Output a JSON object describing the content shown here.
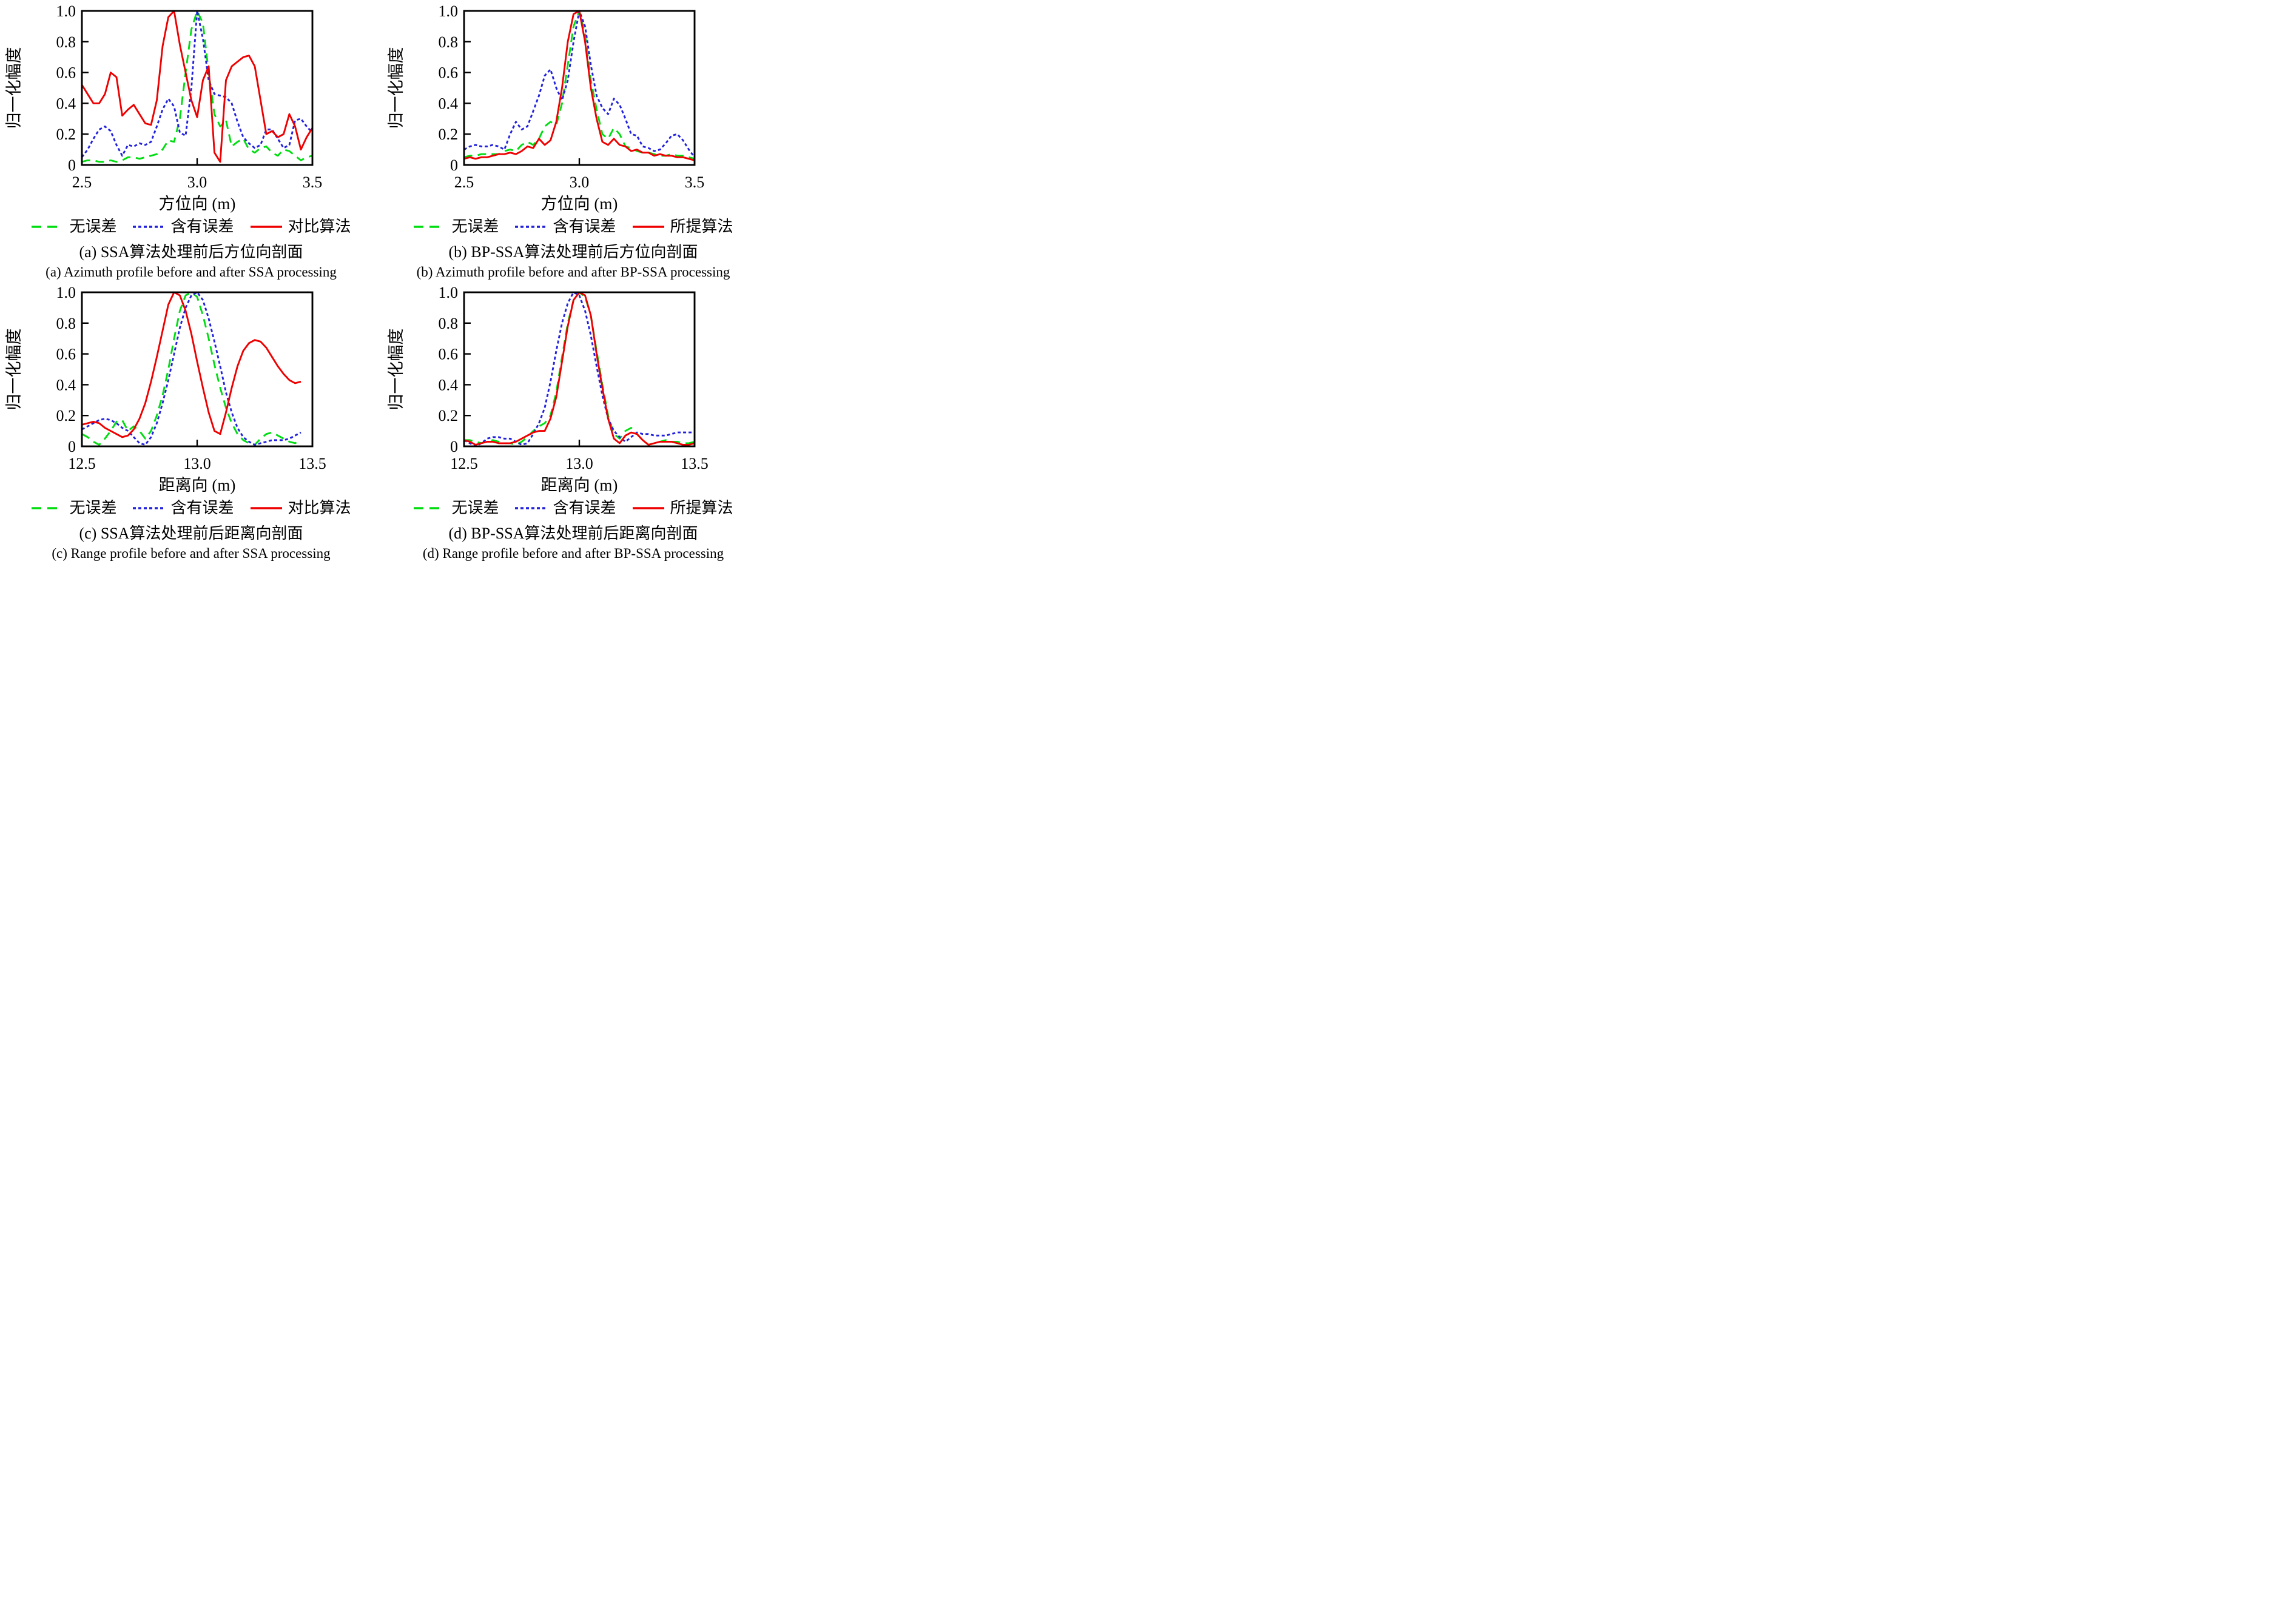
{
  "chart_data": [
    {
      "id": "a",
      "type": "line",
      "caption_zh": "(a) SSA算法处理前后方位向剖面",
      "caption_en": "(a) Azimuth profile before and after SSA processing",
      "xlabel": "方位向 (m)",
      "ylabel": "归一化幅度",
      "xlim": [
        2.5,
        3.5
      ],
      "ylim": [
        0,
        1.0
      ],
      "grid": false,
      "legend_position": "below",
      "x_ticks": [
        {
          "v": 2.5,
          "label": "2.5"
        },
        {
          "v": 3.0,
          "label": "3.0"
        },
        {
          "v": 3.5,
          "label": "3.5"
        }
      ],
      "y_ticks": [
        {
          "v": 0,
          "label": "0"
        },
        {
          "v": 0.2,
          "label": "0.2"
        },
        {
          "v": 0.4,
          "label": "0.4"
        },
        {
          "v": 0.6,
          "label": "0.6"
        },
        {
          "v": 0.8,
          "label": "0.8"
        },
        {
          "v": 1.0,
          "label": "1.0"
        }
      ],
      "series": [
        {
          "name": "无误差",
          "color": "#00dd11",
          "dash": "14,9",
          "legend_dash": "16,10",
          "x_start": 2.5,
          "x_step": 0.025,
          "values": [
            0.02,
            0.03,
            0.03,
            0.02,
            0.02,
            0.03,
            0.02,
            0.03,
            0.05,
            0.05,
            0.04,
            0.05,
            0.06,
            0.07,
            0.1,
            0.16,
            0.15,
            0.3,
            0.6,
            0.88,
            1.0,
            0.92,
            0.6,
            0.33,
            0.25,
            0.29,
            0.12,
            0.15,
            0.17,
            0.1,
            0.08,
            0.11,
            0.12,
            0.08,
            0.06,
            0.1,
            0.09,
            0.06,
            0.03,
            0.05,
            0.06
          ]
        },
        {
          "name": "含有误差",
          "color": "#2222dd",
          "dash": "5,4",
          "legend_dash": "5,4",
          "x_start": 2.5,
          "x_step": 0.025,
          "values": [
            0.05,
            0.1,
            0.17,
            0.23,
            0.25,
            0.22,
            0.13,
            0.06,
            0.13,
            0.12,
            0.14,
            0.13,
            0.15,
            0.25,
            0.36,
            0.43,
            0.38,
            0.21,
            0.19,
            0.5,
            1.0,
            0.82,
            0.55,
            0.46,
            0.45,
            0.44,
            0.4,
            0.28,
            0.18,
            0.14,
            0.11,
            0.13,
            0.23,
            0.23,
            0.17,
            0.11,
            0.13,
            0.29,
            0.3,
            0.25,
            0.21
          ]
        },
        {
          "name": "对比算法",
          "color": "#ee0000",
          "dash": "",
          "legend_dash": "",
          "x_start": 2.5,
          "x_step": 0.025,
          "values": [
            0.52,
            0.46,
            0.4,
            0.4,
            0.46,
            0.6,
            0.57,
            0.32,
            0.36,
            0.39,
            0.33,
            0.27,
            0.26,
            0.42,
            0.77,
            0.96,
            1.0,
            0.78,
            0.6,
            0.42,
            0.31,
            0.55,
            0.64,
            0.08,
            0.02,
            0.55,
            0.64,
            0.67,
            0.7,
            0.71,
            0.64,
            0.42,
            0.2,
            0.22,
            0.18,
            0.2,
            0.33,
            0.25,
            0.1,
            0.18,
            0.24
          ]
        }
      ]
    },
    {
      "id": "b",
      "type": "line",
      "caption_zh": "(b) BP-SSA算法处理前后方位向剖面",
      "caption_en": "(b) Azimuth profile before and after BP-SSA processing",
      "xlabel": "方位向 (m)",
      "ylabel": "归一化幅度",
      "xlim": [
        2.5,
        3.5
      ],
      "ylim": [
        0,
        1.0
      ],
      "grid": false,
      "legend_position": "below",
      "x_ticks": [
        {
          "v": 2.5,
          "label": "2.5"
        },
        {
          "v": 3.0,
          "label": "3.0"
        },
        {
          "v": 3.5,
          "label": "3.5"
        }
      ],
      "y_ticks": [
        {
          "v": 0,
          "label": "0"
        },
        {
          "v": 0.2,
          "label": "0.2"
        },
        {
          "v": 0.4,
          "label": "0.4"
        },
        {
          "v": 0.6,
          "label": "0.6"
        },
        {
          "v": 0.8,
          "label": "0.8"
        },
        {
          "v": 1.0,
          "label": "1.0"
        }
      ],
      "series": [
        {
          "name": "无误差",
          "color": "#00dd11",
          "dash": "14,9",
          "legend_dash": "16,10",
          "x_start": 2.5,
          "x_step": 0.025,
          "values": [
            0.05,
            0.06,
            0.06,
            0.07,
            0.07,
            0.07,
            0.07,
            0.09,
            0.1,
            0.09,
            0.13,
            0.15,
            0.13,
            0.17,
            0.25,
            0.28,
            0.26,
            0.4,
            0.65,
            0.9,
            1.0,
            0.85,
            0.55,
            0.36,
            0.2,
            0.17,
            0.24,
            0.2,
            0.12,
            0.11,
            0.09,
            0.08,
            0.08,
            0.07,
            0.06,
            0.06,
            0.07,
            0.06,
            0.06,
            0.05,
            0.04
          ]
        },
        {
          "name": "含有误差",
          "color": "#2222dd",
          "dash": "5,4",
          "legend_dash": "5,4",
          "x_start": 2.5,
          "x_step": 0.025,
          "values": [
            0.1,
            0.12,
            0.13,
            0.12,
            0.12,
            0.13,
            0.12,
            0.1,
            0.2,
            0.28,
            0.23,
            0.25,
            0.35,
            0.45,
            0.58,
            0.62,
            0.5,
            0.42,
            0.55,
            0.8,
            1.0,
            0.9,
            0.65,
            0.45,
            0.37,
            0.33,
            0.43,
            0.39,
            0.3,
            0.2,
            0.19,
            0.12,
            0.11,
            0.09,
            0.1,
            0.14,
            0.19,
            0.2,
            0.16,
            0.1,
            0.05
          ]
        },
        {
          "name": "所提算法",
          "color": "#ee0000",
          "dash": "",
          "legend_dash": "",
          "x_start": 2.5,
          "x_step": 0.025,
          "values": [
            0.04,
            0.05,
            0.04,
            0.05,
            0.05,
            0.06,
            0.07,
            0.07,
            0.08,
            0.07,
            0.09,
            0.12,
            0.11,
            0.17,
            0.13,
            0.16,
            0.28,
            0.5,
            0.8,
            0.98,
            1.0,
            0.8,
            0.5,
            0.3,
            0.15,
            0.13,
            0.17,
            0.13,
            0.12,
            0.09,
            0.1,
            0.08,
            0.08,
            0.06,
            0.07,
            0.06,
            0.06,
            0.05,
            0.05,
            0.04,
            0.03
          ]
        }
      ]
    },
    {
      "id": "c",
      "type": "line",
      "caption_zh": "(c) SSA算法处理前后距离向剖面",
      "caption_en": "(c) Range profile before and after SSA processing",
      "xlabel": "距离向 (m)",
      "ylabel": "归一化幅度",
      "xlim": [
        12.5,
        13.5
      ],
      "ylim": [
        0,
        1.0
      ],
      "grid": false,
      "legend_position": "below",
      "x_ticks": [
        {
          "v": 12.5,
          "label": "12.5"
        },
        {
          "v": 13.0,
          "label": "13.0"
        },
        {
          "v": 13.5,
          "label": "13.5"
        }
      ],
      "y_ticks": [
        {
          "v": 0,
          "label": "0"
        },
        {
          "v": 0.2,
          "label": "0.2"
        },
        {
          "v": 0.4,
          "label": "0.4"
        },
        {
          "v": 0.6,
          "label": "0.6"
        },
        {
          "v": 0.8,
          "label": "0.8"
        },
        {
          "v": 1.0,
          "label": "1.0"
        }
      ],
      "series": [
        {
          "name": "无误差",
          "color": "#00dd11",
          "dash": "14,9",
          "legend_dash": "16,10",
          "x_start": 12.5,
          "x_step": 0.025,
          "values": [
            0.08,
            0.06,
            0.03,
            0.01,
            0.05,
            0.1,
            0.16,
            0.17,
            0.1,
            0.13,
            0.1,
            0.05,
            0.1,
            0.2,
            0.33,
            0.5,
            0.7,
            0.88,
            0.98,
            1.0,
            0.97,
            0.85,
            0.7,
            0.53,
            0.38,
            0.25,
            0.15,
            0.08,
            0.04,
            0.02,
            0.01,
            0.05,
            0.08,
            0.09,
            0.07,
            0.05,
            0.03,
            0.02,
            0.04
          ]
        },
        {
          "name": "含有误差",
          "color": "#2222dd",
          "dash": "5,4",
          "legend_dash": "5,4",
          "x_start": 12.5,
          "x_step": 0.025,
          "values": [
            0.11,
            0.13,
            0.15,
            0.17,
            0.18,
            0.17,
            0.15,
            0.12,
            0.1,
            0.06,
            0.02,
            0.01,
            0.06,
            0.15,
            0.28,
            0.43,
            0.6,
            0.77,
            0.9,
            0.98,
            1.0,
            0.95,
            0.83,
            0.68,
            0.52,
            0.35,
            0.22,
            0.12,
            0.06,
            0.03,
            0.01,
            0.02,
            0.03,
            0.04,
            0.04,
            0.04,
            0.05,
            0.07,
            0.09
          ]
        },
        {
          "name": "对比算法",
          "color": "#ee0000",
          "dash": "",
          "legend_dash": "",
          "x_start": 12.5,
          "x_step": 0.025,
          "values": [
            0.14,
            0.15,
            0.16,
            0.15,
            0.12,
            0.1,
            0.08,
            0.06,
            0.07,
            0.11,
            0.18,
            0.28,
            0.42,
            0.58,
            0.75,
            0.92,
            1.0,
            0.98,
            0.88,
            0.73,
            0.55,
            0.38,
            0.22,
            0.1,
            0.08,
            0.22,
            0.38,
            0.52,
            0.62,
            0.67,
            0.69,
            0.68,
            0.64,
            0.58,
            0.52,
            0.47,
            0.43,
            0.41,
            0.42
          ]
        }
      ]
    },
    {
      "id": "d",
      "type": "line",
      "caption_zh": "(d) BP-SSA算法处理前后距离向剖面",
      "caption_en": "(d) Range profile before and after BP-SSA processing",
      "xlabel": "距离向 (m)",
      "ylabel": "归一化幅度",
      "xlim": [
        12.5,
        13.5
      ],
      "ylim": [
        0,
        1.0
      ],
      "grid": false,
      "legend_position": "below",
      "x_ticks": [
        {
          "v": 12.5,
          "label": "12.5"
        },
        {
          "v": 13.0,
          "label": "13.0"
        },
        {
          "v": 13.5,
          "label": "13.5"
        }
      ],
      "y_ticks": [
        {
          "v": 0,
          "label": "0"
        },
        {
          "v": 0.2,
          "label": "0.2"
        },
        {
          "v": 0.4,
          "label": "0.4"
        },
        {
          "v": 0.6,
          "label": "0.6"
        },
        {
          "v": 0.8,
          "label": "0.8"
        },
        {
          "v": 1.0,
          "label": "1.0"
        }
      ],
      "series": [
        {
          "name": "无误差",
          "color": "#00dd11",
          "dash": "14,9",
          "legend_dash": "16,10",
          "x_start": 12.5,
          "x_step": 0.025,
          "values": [
            0.04,
            0.04,
            0.03,
            0.02,
            0.03,
            0.04,
            0.03,
            0.02,
            0.02,
            0.01,
            0.03,
            0.06,
            0.1,
            0.13,
            0.15,
            0.2,
            0.35,
            0.58,
            0.8,
            0.95,
            1.0,
            0.97,
            0.85,
            0.62,
            0.4,
            0.2,
            0.08,
            0.05,
            0.1,
            0.12,
            0.08,
            0.04,
            0.01,
            0.02,
            0.03,
            0.04,
            0.03,
            0.03,
            0.02,
            0.02,
            0.03
          ]
        },
        {
          "name": "含有误差",
          "color": "#2222dd",
          "dash": "5,4",
          "legend_dash": "5,4",
          "x_start": 12.5,
          "x_step": 0.025,
          "values": [
            0.04,
            0.02,
            0.0,
            0.02,
            0.05,
            0.06,
            0.06,
            0.05,
            0.05,
            0.03,
            0.01,
            0.02,
            0.08,
            0.15,
            0.25,
            0.42,
            0.62,
            0.8,
            0.93,
            1.0,
            0.98,
            0.88,
            0.72,
            0.52,
            0.33,
            0.18,
            0.1,
            0.06,
            0.03,
            0.06,
            0.09,
            0.08,
            0.08,
            0.07,
            0.07,
            0.07,
            0.08,
            0.09,
            0.09,
            0.09,
            0.09
          ]
        },
        {
          "name": "所提算法",
          "color": "#ee0000",
          "dash": "",
          "legend_dash": "",
          "x_start": 12.5,
          "x_step": 0.025,
          "values": [
            0.04,
            0.03,
            0.01,
            0.02,
            0.03,
            0.03,
            0.02,
            0.02,
            0.02,
            0.03,
            0.05,
            0.07,
            0.09,
            0.1,
            0.1,
            0.18,
            0.32,
            0.55,
            0.78,
            0.95,
            1.0,
            0.98,
            0.85,
            0.6,
            0.38,
            0.18,
            0.05,
            0.02,
            0.07,
            0.09,
            0.08,
            0.04,
            0.01,
            0.02,
            0.03,
            0.03,
            0.03,
            0.02,
            0.01,
            0.01,
            0.02
          ]
        }
      ]
    }
  ]
}
